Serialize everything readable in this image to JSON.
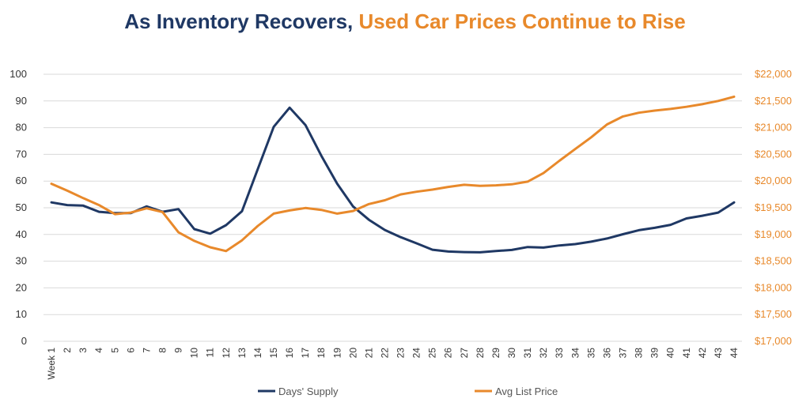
{
  "title": {
    "part1": "As Inventory Recovers,",
    "part2": "Used Car Prices Continue to Rise"
  },
  "colors": {
    "days_supply": "#1F3864",
    "avg_list_price": "#E8892B",
    "grid": "#D9D9D9"
  },
  "chart_data": {
    "type": "line",
    "categories": [
      "Week 1",
      "2",
      "3",
      "4",
      "5",
      "6",
      "7",
      "8",
      "9",
      "10",
      "11",
      "12",
      "13",
      "14",
      "15",
      "16",
      "17",
      "18",
      "19",
      "20",
      "21",
      "22",
      "23",
      "24",
      "25",
      "26",
      "27",
      "28",
      "29",
      "30",
      "31",
      "32",
      "33",
      "34",
      "35",
      "36",
      "37",
      "38",
      "39",
      "40",
      "41",
      "42",
      "43",
      "44"
    ],
    "left_axis": {
      "ylim": [
        0,
        100
      ],
      "ticks": [
        "0",
        "10",
        "20",
        "30",
        "40",
        "50",
        "60",
        "70",
        "80",
        "90",
        "100"
      ]
    },
    "right_axis": {
      "ylim": [
        17000,
        22000
      ],
      "ticks": [
        "$17,000",
        "$17,500",
        "$18,000",
        "$18,500",
        "$19,000",
        "$19,500",
        "$20,000",
        "$20,500",
        "$21,000",
        "$21,500",
        "$22,000"
      ]
    },
    "grid": true,
    "legend_position": "bottom",
    "series": [
      {
        "name": "Days' Supply",
        "axis": "left",
        "values": [
          52,
          51,
          50.8,
          48.5,
          48,
          48,
          50.5,
          48.5,
          49.5,
          42,
          40.3,
          43.5,
          48.7,
          64.5,
          80.3,
          87.5,
          81,
          69.5,
          59,
          50.5,
          45.5,
          41.7,
          39,
          36.7,
          34.3,
          33.6,
          33.4,
          33.3,
          33.8,
          34.2,
          35.3,
          35.1,
          35.9,
          36.4,
          37.3,
          38.5,
          40.1,
          41.6,
          42.5,
          43.6,
          46,
          47,
          48.2,
          52
        ]
      },
      {
        "name": "Avg List Price",
        "axis": "right",
        "values": [
          19950,
          19820,
          19680,
          19550,
          19380,
          19410,
          19490,
          19420,
          19040,
          18880,
          18760,
          18690,
          18890,
          19160,
          19390,
          19450,
          19495,
          19460,
          19390,
          19440,
          19570,
          19640,
          19750,
          19800,
          19840,
          19890,
          19930,
          19910,
          19920,
          19940,
          19990,
          20150,
          20380,
          20600,
          20820,
          21060,
          21210,
          21280,
          21320,
          21350,
          21390,
          21440,
          21500,
          21580
        ]
      }
    ]
  }
}
